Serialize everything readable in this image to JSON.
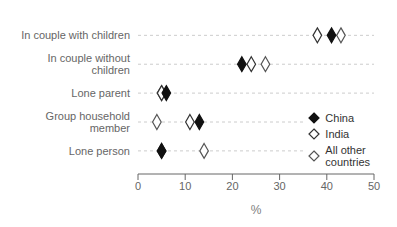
{
  "chart_data": {
    "type": "scatter",
    "categories": [
      "In couple with children",
      "In couple without\nchildren",
      "Lone parent",
      "Group household\nmember",
      "Lone person"
    ],
    "series": [
      {
        "name": "China",
        "color": "#111111",
        "marker": "diamond",
        "values": [
          41,
          22,
          6,
          13,
          5
        ]
      },
      {
        "name": "India",
        "color": "#333333",
        "marker": "open_diamond",
        "values": [
          38,
          24,
          5,
          11,
          5
        ]
      },
      {
        "name": "All other\ncountries",
        "color": "#555555",
        "marker": "open_diamond",
        "values": [
          43,
          27,
          5,
          4,
          14
        ]
      }
    ],
    "xlabel": "%",
    "xlim": [
      0,
      50
    ],
    "xticks": [
      0,
      10,
      20,
      30,
      40,
      50
    ],
    "grid": "y",
    "legend": "lower right"
  }
}
